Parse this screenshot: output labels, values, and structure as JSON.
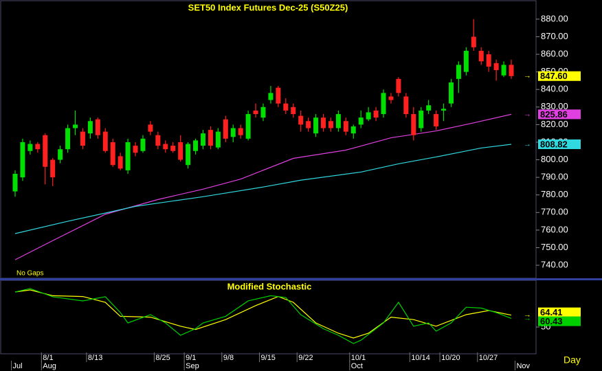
{
  "chart_data": {
    "type": "candlestick",
    "title": "SET50  Index  Futures  Dec-25  (S50Z25)",
    "note": "No  Gaps",
    "period": "Day",
    "up_color": "#00e000",
    "down_color": "#ff2020",
    "ohlc": [
      [
        782,
        794,
        779,
        792
      ],
      [
        790,
        812,
        788,
        810
      ],
      [
        805,
        811,
        803,
        809
      ],
      [
        809,
        810,
        804,
        806
      ],
      [
        814,
        815,
        786,
        796
      ],
      [
        800,
        801,
        785,
        790
      ],
      [
        800,
        808,
        798,
        806
      ],
      [
        806,
        820,
        804,
        818
      ],
      [
        818,
        828,
        814,
        820
      ],
      [
        816,
        818,
        806,
        808
      ],
      [
        815,
        824,
        812,
        822
      ],
      [
        823,
        824,
        812,
        814
      ],
      [
        816,
        818,
        804,
        805
      ],
      [
        810,
        812,
        796,
        797
      ],
      [
        802,
        804,
        794,
        795
      ],
      [
        794,
        812,
        792,
        810
      ],
      [
        808,
        810,
        802,
        804
      ],
      [
        805,
        814,
        804,
        812
      ],
      [
        820,
        822,
        814,
        816
      ],
      [
        814,
        816,
        806,
        808
      ],
      [
        809,
        811,
        804,
        806
      ],
      [
        808,
        810,
        804,
        805
      ],
      [
        810,
        814,
        799,
        800
      ],
      [
        797,
        810,
        795,
        809
      ],
      [
        805,
        812,
        803,
        811
      ],
      [
        808,
        817,
        806,
        815
      ],
      [
        817,
        819,
        806,
        808
      ],
      [
        807,
        818,
        806,
        816
      ],
      [
        823,
        825,
        810,
        812
      ],
      [
        813,
        820,
        810,
        818
      ],
      [
        818,
        820,
        812,
        814
      ],
      [
        812,
        828,
        811,
        826
      ],
      [
        828,
        832,
        824,
        826
      ],
      [
        824,
        832,
        822,
        830
      ],
      [
        834,
        842,
        832,
        838
      ],
      [
        841,
        842,
        830,
        832
      ],
      [
        832,
        835,
        826,
        828
      ],
      [
        830,
        832,
        824,
        826
      ],
      [
        825,
        828,
        816,
        820
      ],
      [
        822,
        824,
        816,
        818
      ],
      [
        815,
        826,
        813,
        824
      ],
      [
        824,
        826,
        816,
        818
      ],
      [
        822,
        824,
        816,
        818
      ],
      [
        818,
        828,
        816,
        826
      ],
      [
        822,
        824,
        814,
        816
      ],
      [
        815,
        820,
        812,
        819
      ],
      [
        820,
        828,
        818,
        824
      ],
      [
        823,
        830,
        822,
        827
      ],
      [
        828,
        830,
        822,
        824
      ],
      [
        826,
        840,
        824,
        838
      ],
      [
        836,
        838,
        832,
        834
      ],
      [
        846,
        847,
        836,
        838
      ],
      [
        836,
        838,
        824,
        826
      ],
      [
        826,
        830,
        811,
        814
      ],
      [
        818,
        830,
        816,
        828
      ],
      [
        828,
        834,
        826,
        831
      ],
      [
        826,
        828,
        817,
        819
      ],
      [
        828,
        832,
        822,
        829
      ],
      [
        832,
        846,
        830,
        844
      ],
      [
        846,
        856,
        838,
        854
      ],
      [
        850,
        864,
        848,
        862
      ],
      [
        870,
        880,
        862,
        864
      ],
      [
        862,
        864,
        854,
        856
      ],
      [
        860,
        862,
        850,
        853
      ],
      [
        855,
        857,
        845,
        851
      ],
      [
        848,
        856,
        847,
        854
      ],
      [
        854,
        857,
        846,
        847.6
      ]
    ],
    "ohlc_end_label": "847.60",
    "ohlc_end_color": "#ffff00",
    "overlays": [
      {
        "color": "#e040e0",
        "end_label": "825.86",
        "x": [
          0,
          5,
          12,
          19,
          25,
          30,
          37,
          44,
          50,
          56,
          61,
          66
        ],
        "values": [
          743.1,
          754,
          769,
          777.4,
          783.3,
          789,
          800.8,
          805.5,
          812.5,
          816.4,
          821,
          825.86
        ]
      },
      {
        "color": "#30d8e0",
        "end_label": "808.82",
        "x": [
          0,
          7,
          16,
          25,
          33,
          38,
          46,
          51,
          56,
          62,
          66
        ],
        "values": [
          758,
          765,
          773.5,
          779,
          784.5,
          788.4,
          793,
          797.7,
          801.6,
          806.7,
          808.82
        ]
      }
    ],
    "ylim": [
      732.6,
      890.5
    ],
    "yticks": [
      {
        "value": 740,
        "label": "740.00"
      },
      {
        "value": 750,
        "label": "750.00"
      },
      {
        "value": 760,
        "label": "760.00"
      },
      {
        "value": 770,
        "label": "770.00"
      },
      {
        "value": 780,
        "label": "780.00"
      },
      {
        "value": 790,
        "label": "790.00"
      },
      {
        "value": 800,
        "label": "800.00"
      },
      {
        "value": 810,
        "label": "810.00"
      },
      {
        "value": 820,
        "label": "820.00"
      },
      {
        "value": 830,
        "label": "830.00"
      },
      {
        "value": 840,
        "label": "840.00"
      },
      {
        "value": 850,
        "label": "850.00"
      },
      {
        "value": 860,
        "label": "860.00"
      },
      {
        "value": 870,
        "label": "870.00"
      },
      {
        "value": 880,
        "label": "880.00"
      }
    ],
    "day_ticks": [
      {
        "value": 4,
        "label": "8/1"
      },
      {
        "value": 10,
        "label": "8/13"
      },
      {
        "value": 19,
        "label": "8/25"
      },
      {
        "value": 23,
        "label": "9/1"
      },
      {
        "value": 28,
        "label": "9/8"
      },
      {
        "value": 33,
        "label": "9/15"
      },
      {
        "value": 38,
        "label": "9/22"
      },
      {
        "value": 45,
        "label": "10/1"
      },
      {
        "value": 53,
        "label": "10/14"
      },
      {
        "value": 57,
        "label": "10/20"
      },
      {
        "value": 62,
        "label": "10/27"
      }
    ],
    "month_ticks": [
      {
        "value": 0,
        "label": "Jul"
      },
      {
        "value": 4,
        "label": "Aug"
      },
      {
        "value": 23,
        "label": "Sep"
      },
      {
        "value": 45,
        "label": "Oct"
      },
      {
        "value": 67,
        "label": "Nov"
      }
    ],
    "indicator": {
      "title": "Modified  Stochastic",
      "ylim": [
        17.5,
        105
      ],
      "yticks": [
        50
      ],
      "series": [
        {
          "color": "#ffff00",
          "end_label": "64.41",
          "x": [
            0,
            2,
            5,
            9,
            12,
            14,
            18,
            22,
            24,
            28,
            32,
            35,
            37,
            40,
            43,
            45,
            47,
            50,
            53,
            56,
            60,
            63,
            66
          ],
          "values": [
            92.5,
            95,
            88,
            87,
            80,
            63,
            62,
            51,
            47,
            59,
            76,
            87,
            80,
            55,
            42.5,
            36.7,
            42.5,
            62,
            59,
            51,
            65,
            70,
            64.41
          ]
        },
        {
          "color": "#00d000",
          "end_label": "60.43",
          "x": [
            0,
            2,
            5,
            9,
            12,
            14,
            15,
            18,
            20,
            22,
            24,
            25,
            28,
            31,
            34,
            36,
            38,
            41,
            43,
            45,
            46,
            49,
            51,
            53,
            55,
            56,
            58,
            60,
            62,
            64,
            66
          ],
          "values": [
            92.5,
            96.7,
            86.7,
            81.7,
            86.7,
            67.5,
            55,
            65,
            55,
            40,
            48,
            55,
            63,
            81.7,
            88,
            85.8,
            65,
            48,
            40,
            30,
            34,
            55,
            80,
            51,
            55,
            45,
            55,
            74,
            73,
            67.5,
            60.43
          ]
        }
      ]
    }
  }
}
